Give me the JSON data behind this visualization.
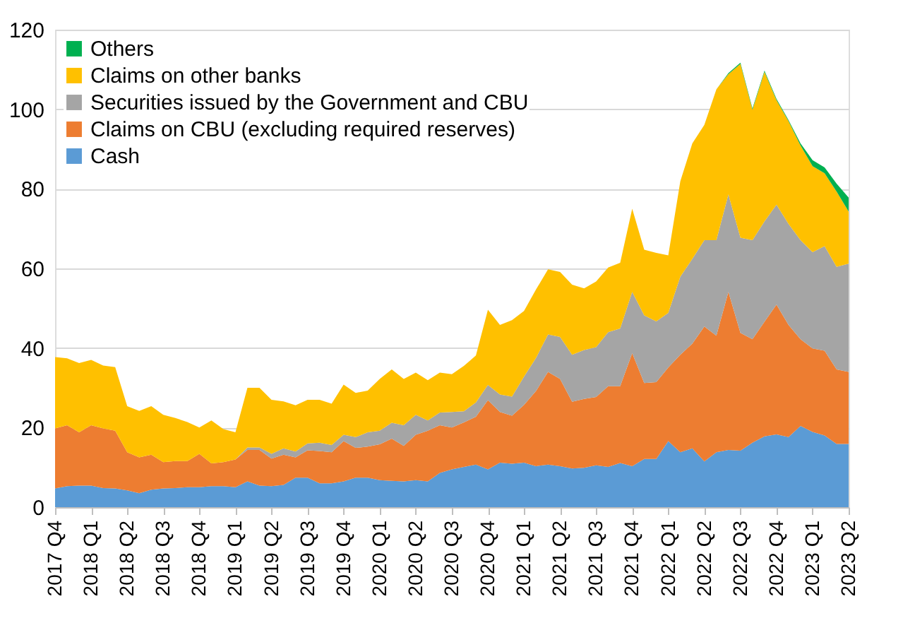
{
  "chart_data": {
    "type": "area",
    "stacked": true,
    "grid": "y",
    "legend": "top left",
    "categories": [
      "2017 Q4",
      null,
      null,
      "2018 Q1",
      null,
      null,
      "2018 Q2",
      null,
      null,
      "2018 Q3",
      null,
      null,
      "2018 Q4",
      null,
      null,
      "2019 Q1",
      null,
      null,
      "2019 Q2",
      null,
      null,
      "2019 Q3",
      null,
      null,
      "2019 Q4",
      null,
      null,
      "2020 Q1",
      null,
      null,
      "2020 Q2",
      null,
      null,
      "2020 Q3",
      null,
      null,
      "2020 Q4",
      null,
      null,
      "2021 Q1",
      null,
      null,
      "2021 Q2",
      null,
      null,
      "2021 Q3",
      null,
      null,
      "2021 Q4",
      null,
      null,
      "2022 Q1",
      null,
      null,
      "2022 Q2",
      null,
      null,
      "2022 Q3",
      null,
      null,
      "2022 Q4",
      null,
      null,
      "2023 Q1",
      null,
      null,
      "2023 Q2"
    ],
    "ylim": [
      0,
      120
    ],
    "yticks": [
      0,
      20,
      40,
      60,
      80,
      100,
      120
    ],
    "series": [
      {
        "name": "Cash",
        "color": "#5b9bd5",
        "values": [
          4.7,
          5.3,
          5.4,
          5.4,
          4.8,
          4.7,
          4.2,
          3.5,
          4.4,
          4.7,
          4.8,
          5.0,
          5.0,
          5.3,
          5.3,
          5.0,
          6.5,
          5.4,
          5.3,
          5.6,
          7.4,
          7.4,
          6.0,
          6.0,
          6.5,
          7.4,
          7.4,
          6.8,
          6.6,
          6.5,
          6.8,
          6.5,
          8.6,
          9.5,
          10.1,
          10.7,
          9.5,
          11.2,
          10.9,
          11.2,
          10.3,
          10.7,
          10.3,
          9.7,
          9.9,
          10.5,
          10.1,
          11.1,
          10.3,
          12.1,
          12.1,
          16.6,
          13.8,
          14.8,
          11.5,
          13.8,
          14.4,
          14.2,
          16.2,
          17.8,
          18.3,
          17.6,
          20.4,
          18.9,
          18.0,
          15.9,
          15.9
        ]
      },
      {
        "name": "Claims on CBU (excluding required reserves)",
        "color": "#ed7d31",
        "values": [
          15.1,
          15.3,
          13.4,
          15.2,
          15.0,
          14.5,
          9.6,
          9.0,
          8.8,
          6.6,
          6.8,
          6.6,
          8.4,
          5.7,
          6.0,
          7.0,
          7.9,
          9.0,
          6.9,
          7.6,
          5.1,
          6.9,
          8.1,
          7.8,
          10.1,
          7.5,
          7.8,
          9.0,
          10.6,
          8.9,
          11.4,
          12.7,
          12.0,
          10.5,
          11.2,
          12.0,
          17.4,
          12.7,
          12.1,
          14.5,
          18.9,
          23.3,
          21.9,
          16.8,
          17.3,
          17.2,
          20.3,
          19.3,
          28.4,
          19.1,
          19.3,
          18.5,
          24.5,
          26.3,
          33.9,
          29.3,
          39.7,
          29.6,
          26.0,
          28.8,
          32.6,
          28.2,
          21.8,
          21.0,
          21.3,
          18.7,
          18.1
        ]
      },
      {
        "name": "Securities issued by the Government and CBU",
        "color": "#a5a5a5",
        "values": [
          0,
          0,
          0,
          0,
          0,
          0,
          0,
          0,
          0,
          0,
          0,
          0,
          0,
          0,
          0,
          0,
          0.6,
          0.6,
          1.2,
          1.6,
          1.5,
          1.7,
          2.1,
          1.8,
          1.6,
          2.7,
          3.6,
          3.4,
          4.0,
          5.2,
          5.0,
          2.6,
          3.2,
          3.9,
          2.8,
          3.6,
          3.8,
          4.4,
          4.8,
          7.1,
          8.3,
          9.4,
          10.6,
          11.8,
          12.3,
          12.5,
          13.6,
          14.5,
          15.4,
          17.0,
          15.3,
          13.7,
          19.6,
          21.3,
          21.7,
          24.0,
          24.5,
          23.9,
          24.9,
          25.2,
          25.1,
          25.4,
          24.9,
          24.2,
          26.3,
          25.8,
          27.2
        ]
      },
      {
        "name": "Claims on other banks",
        "color": "#ffc000",
        "values": [
          17.9,
          16.8,
          17.4,
          16.4,
          15.8,
          16.0,
          11.6,
          11.7,
          12.2,
          11.9,
          10.8,
          9.8,
          6.6,
          10.8,
          8.3,
          6.8,
          15.0,
          15.0,
          13.6,
          11.8,
          11.6,
          11.0,
          10.8,
          10.4,
          12.6,
          11.1,
          10.5,
          13.0,
          13.4,
          11.6,
          10.6,
          10.1,
          10.0,
          9.5,
          11.4,
          11.8,
          18.9,
          17.5,
          19.2,
          16.5,
          17.2,
          16.4,
          16.3,
          17.6,
          15.5,
          16.5,
          16.2,
          16.5,
          20.9,
          16.5,
          17.2,
          14.5,
          24.0,
          29.0,
          29.0,
          37.9,
          30.2,
          43.7,
          32.8,
          37.6,
          26.3,
          25.8,
          23.8,
          21.6,
          18.3,
          18.9,
          13.1
        ]
      },
      {
        "name": "Others",
        "color": "#00b050",
        "values": [
          0,
          0,
          0,
          0,
          0,
          0,
          0,
          0,
          0,
          0,
          0,
          0,
          0,
          0,
          0,
          0,
          0,
          0,
          0,
          0,
          0,
          0,
          0,
          0,
          0,
          0,
          0,
          0,
          0,
          0,
          0,
          0,
          0,
          0,
          0,
          0,
          0,
          0,
          0,
          0,
          0,
          0,
          0,
          0,
          0,
          0,
          0,
          0,
          0,
          0,
          0,
          0,
          0,
          0,
          0,
          0,
          0.3,
          0.3,
          0.3,
          0.3,
          0.3,
          0.3,
          0.5,
          1.5,
          1.5,
          2.0,
          3.5
        ]
      }
    ]
  }
}
